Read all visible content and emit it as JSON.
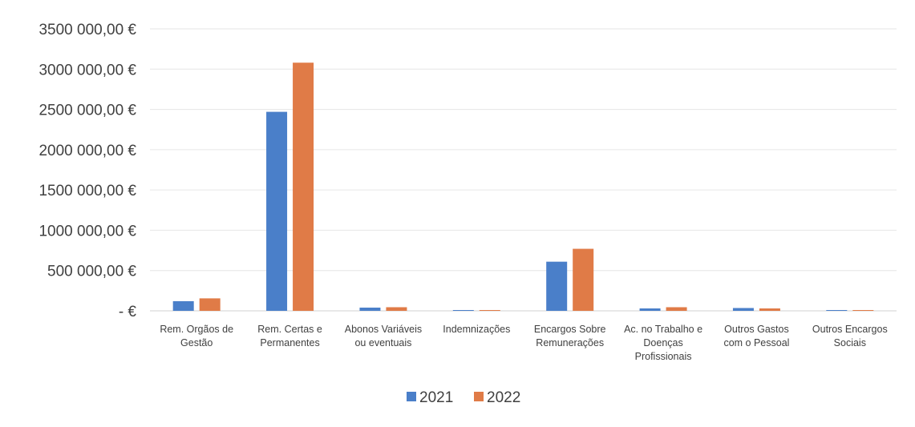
{
  "chart_data": {
    "type": "bar",
    "categories": [
      [
        "Rem. Orgãos de",
        "Gestão"
      ],
      [
        "Rem. Certas e",
        "Permanentes"
      ],
      [
        "Abonos Variáveis",
        "ou eventuais"
      ],
      [
        "Indemnizações"
      ],
      [
        "Encargos Sobre",
        "Remunerações"
      ],
      [
        "Ac. no Trabalho e",
        "Doenças",
        "Profissionais"
      ],
      [
        "Outros Gastos",
        "com o Pessoal"
      ],
      [
        "Outros Encargos",
        "Sociais"
      ]
    ],
    "series": [
      {
        "name": "2021",
        "color": "#4a7fc9",
        "values": [
          120000,
          2470000,
          40000,
          0,
          610000,
          30000,
          35000,
          0
        ]
      },
      {
        "name": "2022",
        "color": "#e07b47",
        "values": [
          155000,
          3080000,
          45000,
          0,
          770000,
          45000,
          30000,
          0
        ]
      }
    ],
    "y_ticks": [
      {
        "value": 3500000,
        "label": "3500 000,00 €"
      },
      {
        "value": 3000000,
        "label": "3000 000,00 €"
      },
      {
        "value": 2500000,
        "label": "2500 000,00 €"
      },
      {
        "value": 2000000,
        "label": "2000 000,00 €"
      },
      {
        "value": 1500000,
        "label": "1500 000,00 €"
      },
      {
        "value": 1000000,
        "label": "1000 000,00 €"
      },
      {
        "value": 500000,
        "label": "500 000,00 €"
      },
      {
        "value": 0,
        "label": "-  €"
      }
    ],
    "ylim": [
      0,
      3500000
    ],
    "grid": true,
    "legend_position": "bottom"
  }
}
